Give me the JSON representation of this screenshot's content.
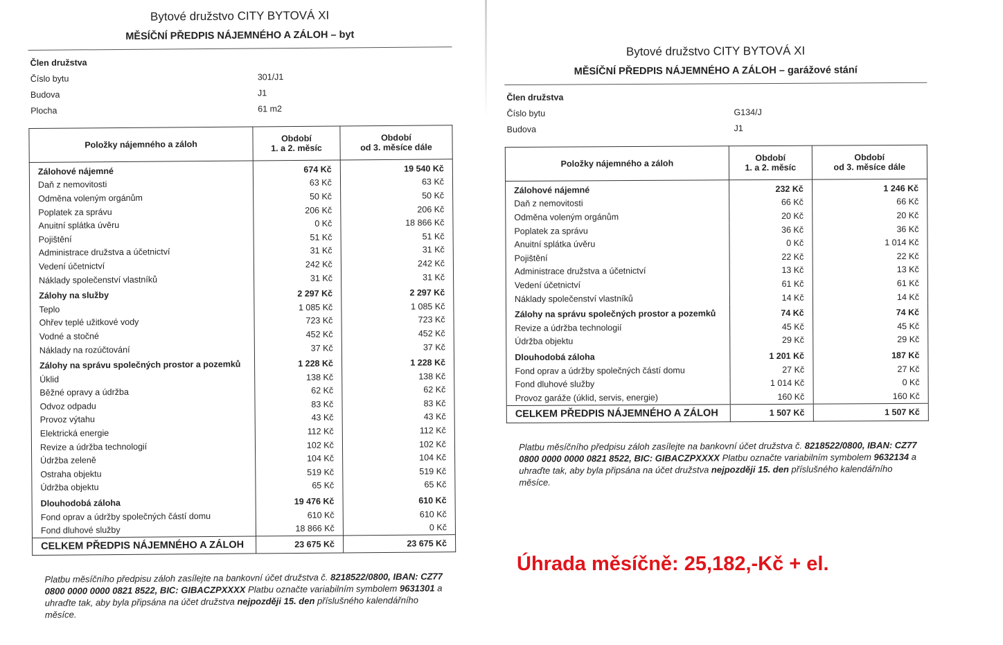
{
  "docs": [
    {
      "title": "Bytové družstvo CITY BYTOVÁ XI",
      "subtitle": "MĚSÍČNÍ PŘEDPIS NÁJEMNÉHO A ZÁLOH – byt",
      "info": [
        {
          "label": "Člen družstva",
          "value": "",
          "bold": true
        },
        {
          "label": "Číslo bytu",
          "value": "301/J1"
        },
        {
          "label": "Budova",
          "value": "J1"
        },
        {
          "label": "Plocha",
          "value": "61 m2"
        }
      ],
      "table": {
        "headers": [
          "Položky nájemného a záloh",
          "Období\n1. a 2. měsíc",
          "Období\nod 3. měsíce dále"
        ],
        "rows": [
          {
            "label": "Zálohové nájemné",
            "v1": "674 Kč",
            "v2": "19 540 Kč",
            "bold": true
          },
          {
            "label": "Daň z nemovitosti",
            "v1": "63 Kč",
            "v2": "63 Kč"
          },
          {
            "label": "Odměna voleným orgánům",
            "v1": "50 Kč",
            "v2": "50 Kč"
          },
          {
            "label": "Poplatek za správu",
            "v1": "206 Kč",
            "v2": "206 Kč"
          },
          {
            "label": "Anuitní splátka úvěru",
            "v1": "0 Kč",
            "v2": "18 866 Kč"
          },
          {
            "label": "Pojištění",
            "v1": "51 Kč",
            "v2": "51 Kč"
          },
          {
            "label": "Administrace družstva a účetnictví",
            "v1": "31 Kč",
            "v2": "31 Kč"
          },
          {
            "label": "Vedení účetnictví",
            "v1": "242 Kč",
            "v2": "242 Kč"
          },
          {
            "label": "Náklady společenství vlastníků",
            "v1": "31 Kč",
            "v2": "31 Kč"
          },
          {
            "label": "Zálohy na služby",
            "v1": "2 297 Kč",
            "v2": "2 297 Kč",
            "bold": true
          },
          {
            "label": "Teplo",
            "v1": "1 085 Kč",
            "v2": "1 085 Kč"
          },
          {
            "label": "Ohřev teplé užitkové vody",
            "v1": "723 Kč",
            "v2": "723 Kč"
          },
          {
            "label": "Vodné a stočné",
            "v1": "452 Kč",
            "v2": "452 Kč"
          },
          {
            "label": "Náklady na rozúčtování",
            "v1": "37 Kč",
            "v2": "37 Kč"
          },
          {
            "label": "Zálohy na správu společných prostor a pozemků",
            "v1": "1 228 Kč",
            "v2": "1 228 Kč",
            "bold": true
          },
          {
            "label": "Úklid",
            "v1": "138 Kč",
            "v2": "138 Kč"
          },
          {
            "label": "Běžné opravy a údržba",
            "v1": "62 Kč",
            "v2": "62 Kč"
          },
          {
            "label": "Odvoz odpadu",
            "v1": "83 Kč",
            "v2": "83 Kč"
          },
          {
            "label": "Provoz výtahu",
            "v1": "43 Kč",
            "v2": "43 Kč"
          },
          {
            "label": "Elektrická energie",
            "v1": "112 Kč",
            "v2": "112 Kč"
          },
          {
            "label": "Revize a údržba technologií",
            "v1": "102 Kč",
            "v2": "102 Kč"
          },
          {
            "label": "Údržba zeleně",
            "v1": "104 Kč",
            "v2": "104 Kč"
          },
          {
            "label": "Ostraha objektu",
            "v1": "519 Kč",
            "v2": "519 Kč"
          },
          {
            "label": "Údržba objektu",
            "v1": "65 Kč",
            "v2": "65 Kč"
          },
          {
            "label": "Dlouhodobá záloha",
            "v1": "19 476 Kč",
            "v2": "610 Kč",
            "bold": true
          },
          {
            "label": "Fond oprav a údržby společných částí domu",
            "v1": "610 Kč",
            "v2": "610 Kč"
          },
          {
            "label": "Fond dluhové služby",
            "v1": "18 866 Kč",
            "v2": "0 Kč"
          }
        ],
        "total": {
          "label": "CELKEM PŘEDPIS NÁJEMNÉHO A ZÁLOH",
          "v1": "23 675 Kč",
          "v2": "23 675 Kč"
        }
      },
      "footer": [
        {
          "text": "Platbu měsíčního předpisu záloh zasílejte na bankovní účet družstva č. "
        },
        {
          "text": "8218522/0800, IBAN: CZ77 0800 0000 0000 0821 8522, BIC: GIBACZPXXXX",
          "bold": true
        },
        {
          "text": " Platbu označte variabilním symbolem "
        },
        {
          "text": "9631301",
          "bold": true
        },
        {
          "text": " a uhraďte tak, aby byla připsána na účet družstva "
        },
        {
          "text": "nejpozději 15. den",
          "bold": true
        },
        {
          "text": " příslušného kalendářního měsíce."
        }
      ]
    },
    {
      "title": "Bytové družstvo CITY BYTOVÁ XI",
      "subtitle": "MĚSÍČNÍ PŘEDPIS NÁJEMNÉHO A ZÁLOH – garážové stání",
      "info": [
        {
          "label": "Člen družstva",
          "value": "",
          "bold": true
        },
        {
          "label": "Číslo bytu",
          "value": "G134/J"
        },
        {
          "label": "Budova",
          "value": "J1"
        }
      ],
      "table": {
        "headers": [
          "Položky nájemného a záloh",
          "Období\n1. a 2. měsíc",
          "Období\nod 3. měsíce dále"
        ],
        "rows": [
          {
            "label": "Zálohové nájemné",
            "v1": "232 Kč",
            "v2": "1 246 Kč",
            "bold": true
          },
          {
            "label": "Daň z nemovitosti",
            "v1": "66 Kč",
            "v2": "66 Kč"
          },
          {
            "label": "Odměna voleným orgánům",
            "v1": "20 Kč",
            "v2": "20 Kč"
          },
          {
            "label": "Poplatek za správu",
            "v1": "36 Kč",
            "v2": "36 Kč"
          },
          {
            "label": "Anuitní splátka úvěru",
            "v1": "0 Kč",
            "v2": "1 014 Kč"
          },
          {
            "label": "Pojištění",
            "v1": "22 Kč",
            "v2": "22 Kč"
          },
          {
            "label": "Administrace družstva a účetnictví",
            "v1": "13 Kč",
            "v2": "13 Kč"
          },
          {
            "label": "Vedení účetnictví",
            "v1": "61 Kč",
            "v2": "61 Kč"
          },
          {
            "label": "Náklady společenství vlastníků",
            "v1": "14 Kč",
            "v2": "14 Kč"
          },
          {
            "label": "Zálohy na správu společných prostor a pozemků",
            "v1": "74 Kč",
            "v2": "74 Kč",
            "bold": true
          },
          {
            "label": "Revize a údržba technologií",
            "v1": "45 Kč",
            "v2": "45 Kč"
          },
          {
            "label": "Údržba objektu",
            "v1": "29 Kč",
            "v2": "29 Kč"
          },
          {
            "label": "Dlouhodobá záloha",
            "v1": "1 201 Kč",
            "v2": "187 Kč",
            "bold": true
          },
          {
            "label": "Fond oprav a údržby společných částí domu",
            "v1": "27 Kč",
            "v2": "27 Kč"
          },
          {
            "label": "Fond dluhové služby",
            "v1": "1 014 Kč",
            "v2": "0 Kč"
          },
          {
            "label": "Provoz garáže (úklid, servis, energie)",
            "v1": "160 Kč",
            "v2": "160 Kč"
          }
        ],
        "total": {
          "label": "CELKEM PŘEDPIS NÁJEMNÉHO A ZÁLOH",
          "v1": "1 507 Kč",
          "v2": "1 507 Kč"
        }
      },
      "footer": [
        {
          "text": "Platbu měsíčního předpisu záloh zasílejte na bankovní účet družstva č. "
        },
        {
          "text": "8218522/0800, IBAN: CZ77 0800 0000 0000 0821 8522, BIC: GIBACZPXXXX",
          "bold": true
        },
        {
          "text": " Platbu označte variabilním symbolem "
        },
        {
          "text": "9632134",
          "bold": true
        },
        {
          "text": " a uhraďte tak, aby byla připsána na účet družstva "
        },
        {
          "text": "nejpozději 15. den",
          "bold": true
        },
        {
          "text": " příslušného kalendářního měsíce."
        }
      ]
    }
  ],
  "note": {
    "text": "Úhrada měsíčně: 25,182,-Kč + el.",
    "color": "#e0151b"
  }
}
